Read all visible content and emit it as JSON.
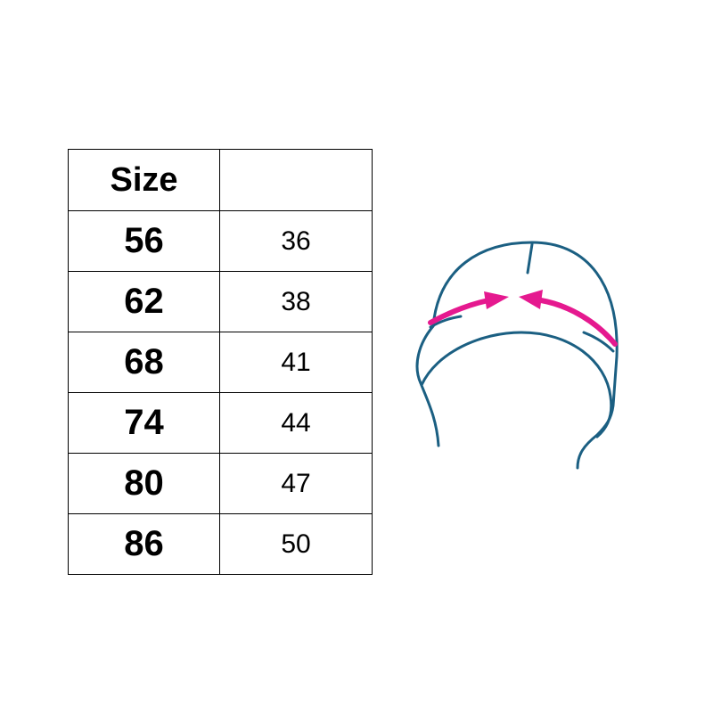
{
  "table": {
    "headers": [
      "Size",
      ""
    ],
    "rows": [
      {
        "size": "56",
        "value": "36"
      },
      {
        "size": "62",
        "value": "38"
      },
      {
        "size": "68",
        "value": "41"
      },
      {
        "size": "74",
        "value": "44"
      },
      {
        "size": "80",
        "value": "47"
      },
      {
        "size": "86",
        "value": "50"
      }
    ]
  },
  "illustration": {
    "icon": "hat-head-circumference-icon",
    "outline_color": "#1b5f82",
    "arrow_color": "#e5198f"
  }
}
